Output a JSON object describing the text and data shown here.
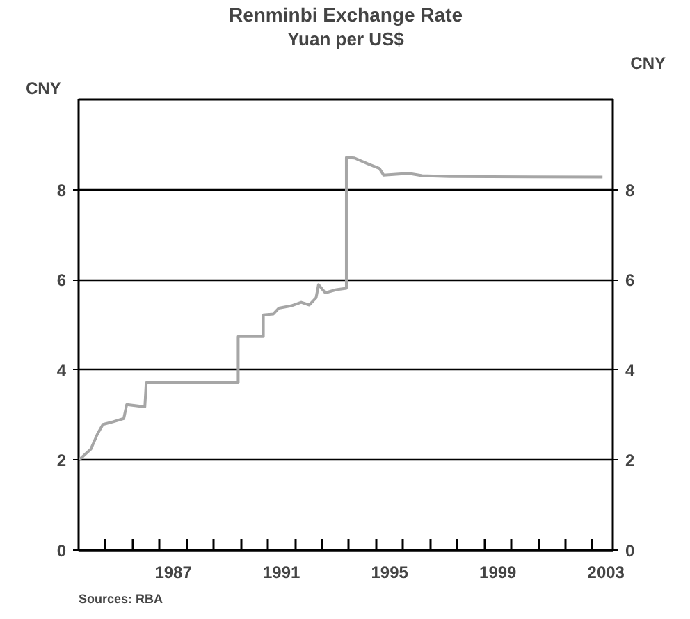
{
  "chart_data": {
    "type": "line",
    "title": "Renminbi Exchange Rate",
    "subtitle": "Yuan per US$",
    "ylabel": "CNY",
    "y2label": "CNY",
    "annotations": [
      "Sources: RBA"
    ],
    "x": [
      1984.03,
      1984.45,
      1984.7,
      1984.9,
      1985.28,
      1985.67,
      1985.78,
      1986.45,
      1986.5,
      1989.9,
      1989.9,
      1990.83,
      1990.83,
      1991.2,
      1991.4,
      1991.85,
      1992.23,
      1992.53,
      1992.78,
      1992.87,
      1993.12,
      1993.53,
      1993.9,
      1993.9,
      1994.2,
      1994.7,
      1995.12,
      1995.28,
      1996.2,
      1996.7,
      1997.7,
      2003.37
    ],
    "series": [
      {
        "color": "#a6a6a6",
        "values": [
          2.01,
          2.24,
          2.58,
          2.79,
          2.85,
          2.92,
          3.23,
          3.18,
          3.72,
          3.72,
          4.74,
          4.74,
          5.22,
          5.24,
          5.37,
          5.42,
          5.5,
          5.44,
          5.6,
          5.89,
          5.71,
          5.78,
          5.81,
          8.71,
          8.7,
          8.57,
          8.47,
          8.32,
          8.36,
          8.31,
          8.29,
          8.28
        ]
      }
    ],
    "xlim": [
      1984,
      2003.75
    ],
    "xticks": [
      {
        "value": 1985,
        "label": null
      },
      {
        "value": 1986,
        "label": null
      },
      {
        "value": 1987,
        "label": null
      },
      {
        "value": 1988,
        "label": null
      },
      {
        "value": 1989,
        "label": null
      },
      {
        "value": 1990,
        "label": null
      },
      {
        "value": 1991,
        "label": null
      },
      {
        "value": 1992,
        "label": null
      },
      {
        "value": 1993,
        "label": null
      },
      {
        "value": 1994,
        "label": null
      },
      {
        "value": 1995,
        "label": null
      },
      {
        "value": 1996,
        "label": null
      },
      {
        "value": 1997,
        "label": null
      },
      {
        "value": 1998,
        "label": null
      },
      {
        "value": 1999,
        "label": null
      },
      {
        "value": 2000,
        "label": null
      },
      {
        "value": 2001,
        "label": null
      },
      {
        "value": 2002,
        "label": null
      },
      {
        "value": 2003,
        "label": null
      },
      {
        "value": 1987.5,
        "label": "1987"
      },
      {
        "value": 1991.5,
        "label": "1991"
      },
      {
        "value": 1995.5,
        "label": "1995"
      },
      {
        "value": 1999.5,
        "label": "1999"
      },
      {
        "value": 2003.5,
        "label": "2003"
      }
    ],
    "ylim": [
      0,
      10
    ],
    "yticks": [
      0,
      2,
      4,
      6,
      8
    ],
    "y2lim": [
      0,
      10
    ],
    "y2ticks": [
      0,
      2,
      4,
      6,
      8
    ],
    "grid": "y",
    "marker": "none",
    "line_style": "solid"
  }
}
